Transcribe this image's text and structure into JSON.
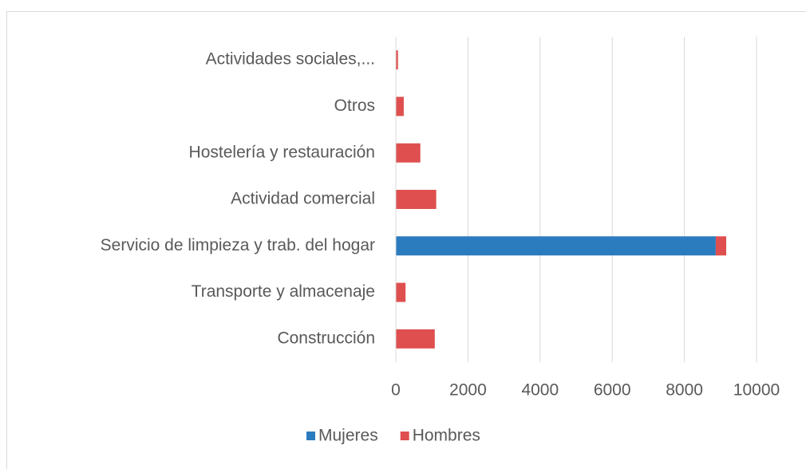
{
  "chart_data": {
    "type": "stacked_barh",
    "categories": [
      "Actividades sociales,...",
      "Otros",
      "Hostelería y restauración",
      "Actividad comercial",
      "Servicio de limpieza y trab. del hogar",
      "Transporte y almacenaje",
      "Construcción"
    ],
    "series": [
      {
        "name": "Mujeres",
        "color": "#2b7bbf",
        "values": [
          0,
          0,
          0,
          0,
          8870,
          0,
          0
        ]
      },
      {
        "name": "Hombres",
        "color": "#df4f4f",
        "values": [
          60,
          220,
          680,
          1120,
          290,
          270,
          1080
        ]
      }
    ],
    "xlim": [
      0,
      10000
    ],
    "xticks": [
      0,
      2000,
      4000,
      6000,
      8000,
      10000
    ],
    "grid": true,
    "legend": "bottom"
  }
}
